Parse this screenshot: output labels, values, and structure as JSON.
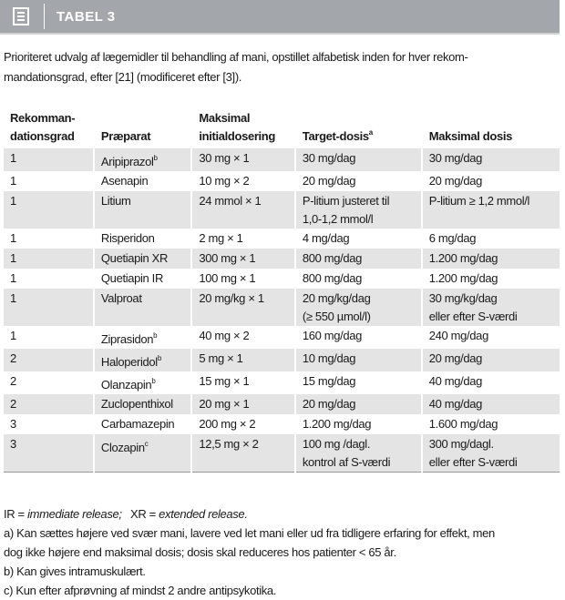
{
  "header": {
    "title": "TABEL 3"
  },
  "caption": [
    "Prioriteret udvalg af lægemidler til behandling af mani, opstillet alfabetisk inden for hver rekom-",
    "mandationsgrad, efter [21] (modificeret efter [3])."
  ],
  "table": {
    "columns": [
      {
        "lines": [
          "Rekomman-",
          "dationsgrad"
        ]
      },
      {
        "lines": [
          "Præparat"
        ]
      },
      {
        "lines": [
          "Maksimal",
          "initialdosering"
        ]
      },
      {
        "lines": [
          "Target-dosis"
        ],
        "sup": "a"
      },
      {
        "lines": [
          "Maksimal dosis"
        ]
      }
    ],
    "rows": [
      [
        {
          "lines": [
            "1"
          ]
        },
        {
          "lines": [
            "Aripiprazol"
          ],
          "sup": "b"
        },
        {
          "lines": [
            "30 mg × 1"
          ]
        },
        {
          "lines": [
            "30 mg/dag"
          ]
        },
        {
          "lines": [
            "30 mg/dag"
          ]
        }
      ],
      [
        {
          "lines": [
            "1"
          ]
        },
        {
          "lines": [
            "Asenapin"
          ]
        },
        {
          "lines": [
            "10 mg × 2"
          ]
        },
        {
          "lines": [
            "20 mg/dag"
          ]
        },
        {
          "lines": [
            "20 mg/dag"
          ]
        }
      ],
      [
        {
          "lines": [
            "1"
          ]
        },
        {
          "lines": [
            "Litium"
          ]
        },
        {
          "lines": [
            "24 mmol × 1"
          ]
        },
        {
          "lines": [
            "P-litium justeret til",
            "1,0-1,2 mmol/l"
          ]
        },
        {
          "lines": [
            "P-litium ≥ 1,2 mmol/l"
          ]
        }
      ],
      [
        {
          "lines": [
            "1"
          ]
        },
        {
          "lines": [
            "Risperidon"
          ]
        },
        {
          "lines": [
            "2 mg × 1"
          ]
        },
        {
          "lines": [
            "4 mg/dag"
          ]
        },
        {
          "lines": [
            "6 mg/dag"
          ]
        }
      ],
      [
        {
          "lines": [
            "1"
          ]
        },
        {
          "lines": [
            "Quetiapin XR"
          ]
        },
        {
          "lines": [
            "300 mg × 1"
          ]
        },
        {
          "lines": [
            "800 mg/dag"
          ]
        },
        {
          "lines": [
            "1.200 mg/dag"
          ]
        }
      ],
      [
        {
          "lines": [
            "1"
          ]
        },
        {
          "lines": [
            "Quetiapin IR"
          ]
        },
        {
          "lines": [
            "100 mg × 1"
          ]
        },
        {
          "lines": [
            "800 mg/dag"
          ]
        },
        {
          "lines": [
            "1.200 mg/dag"
          ]
        }
      ],
      [
        {
          "lines": [
            "1"
          ]
        },
        {
          "lines": [
            "Valproat"
          ]
        },
        {
          "lines": [
            "20 mg/kg × 1"
          ]
        },
        {
          "lines": [
            "20 mg/kg/dag",
            "(≥ 550 µmol/l)"
          ]
        },
        {
          "lines": [
            "30 mg/kg/dag",
            " eller efter S-værdi"
          ]
        }
      ],
      [
        {
          "lines": [
            "1"
          ]
        },
        {
          "lines": [
            "Ziprasidon"
          ],
          "sup": "b"
        },
        {
          "lines": [
            "40 mg × 2"
          ]
        },
        {
          "lines": [
            "160 mg/dag"
          ]
        },
        {
          "lines": [
            "240 mg/dag"
          ]
        }
      ],
      [
        {
          "lines": [
            "2"
          ]
        },
        {
          "lines": [
            "Haloperidol"
          ],
          "sup": "b"
        },
        {
          "lines": [
            "5 mg × 1"
          ]
        },
        {
          "lines": [
            "10 mg/dag"
          ]
        },
        {
          "lines": [
            "20 mg/dag"
          ]
        }
      ],
      [
        {
          "lines": [
            "2"
          ]
        },
        {
          "lines": [
            "Olanzapin"
          ],
          "sup": "b"
        },
        {
          "lines": [
            "15 mg × 1"
          ]
        },
        {
          "lines": [
            "15 mg/dag"
          ]
        },
        {
          "lines": [
            "40 mg/dag"
          ]
        }
      ],
      [
        {
          "lines": [
            "2"
          ]
        },
        {
          "lines": [
            "Zuclopenthixol"
          ]
        },
        {
          "lines": [
            "20 mg × 1"
          ]
        },
        {
          "lines": [
            "20 mg/dag"
          ]
        },
        {
          "lines": [
            "40 mg/dag"
          ]
        }
      ],
      [
        {
          "lines": [
            "3"
          ]
        },
        {
          "lines": [
            "Carbamazepin"
          ]
        },
        {
          "lines": [
            "200 mg × 2"
          ]
        },
        {
          "lines": [
            "1.200 mg/dag"
          ]
        },
        {
          "lines": [
            "1.600 mg/dag"
          ]
        }
      ],
      [
        {
          "lines": [
            "3"
          ]
        },
        {
          "lines": [
            "Clozapin"
          ],
          "sup": "c"
        },
        {
          "lines": [
            "12,5 mg × 2"
          ]
        },
        {
          "lines": [
            "100 mg /dagl.",
            "kontrol af S-værdi"
          ]
        },
        {
          "lines": [
            "300 mg/dagl.",
            " eller efter S-værdi"
          ]
        }
      ]
    ]
  },
  "abbreviations": [
    {
      "term": "IR =",
      "meaning": "immediate release;"
    },
    {
      "term": "XR =",
      "meaning": "extended release."
    }
  ],
  "footnotes": [
    [
      "a) Kan sættes højere ved svær mani, lavere ved let mani eller ud fra tidligere erfaring for effekt, men",
      "dog ikke højere end maksimal dosis; dosis skal reduceres hos patienter < 65 år."
    ],
    [
      "b) Kan gives intramuskulært."
    ],
    [
      "c) Kun efter afprøvning af mindst 2 andre antipsykotika."
    ]
  ]
}
